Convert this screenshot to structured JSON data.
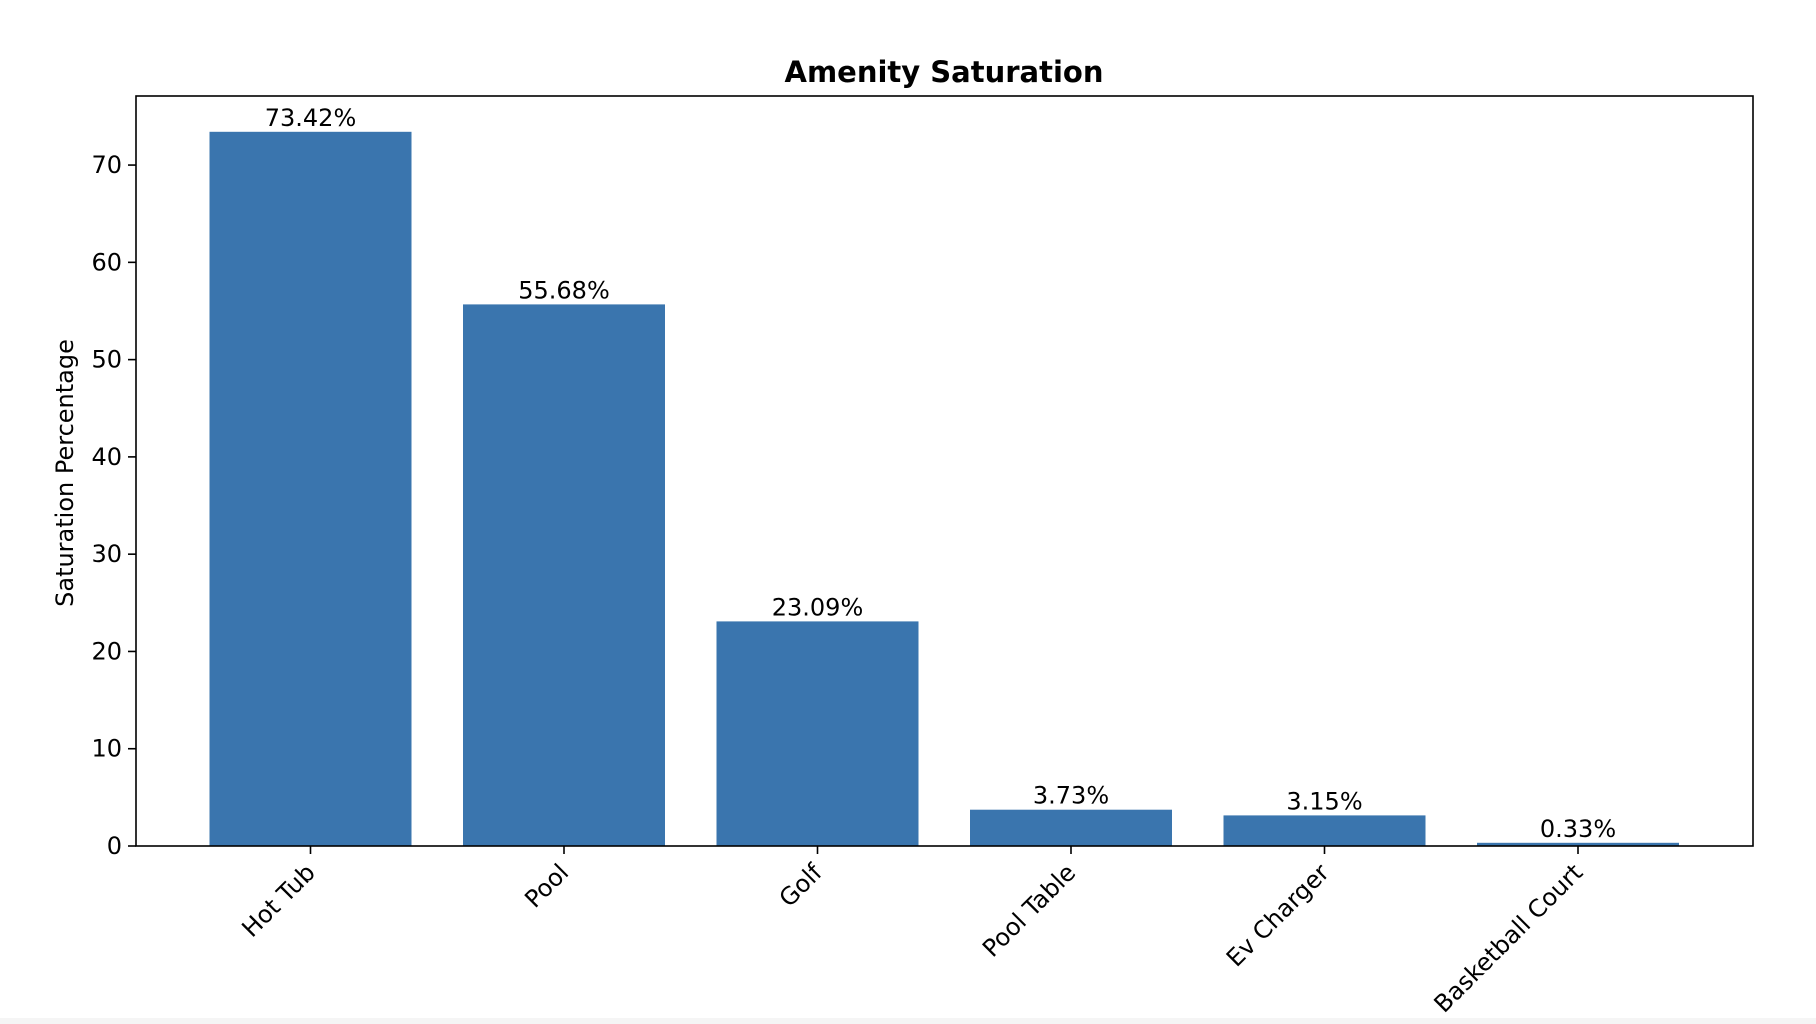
{
  "chart_data": {
    "type": "bar",
    "title": "Amenity Saturation",
    "xlabel": "",
    "ylabel": "Saturation Percentage",
    "categories": [
      "Hot Tub",
      "Pool",
      "Golf",
      "Pool Table",
      "Ev Charger",
      "Basketball Court"
    ],
    "values": [
      73.42,
      55.68,
      23.09,
      3.73,
      3.15,
      0.33
    ],
    "data_labels": [
      "73.42%",
      "55.68%",
      "23.09%",
      "3.73%",
      "3.15%",
      "0.33%"
    ],
    "ylim": [
      0,
      77.1
    ],
    "yticks": [
      0,
      10,
      20,
      30,
      40,
      50,
      60,
      70
    ],
    "bar_color": "#3a75ae",
    "grid": false,
    "legend": "none"
  }
}
